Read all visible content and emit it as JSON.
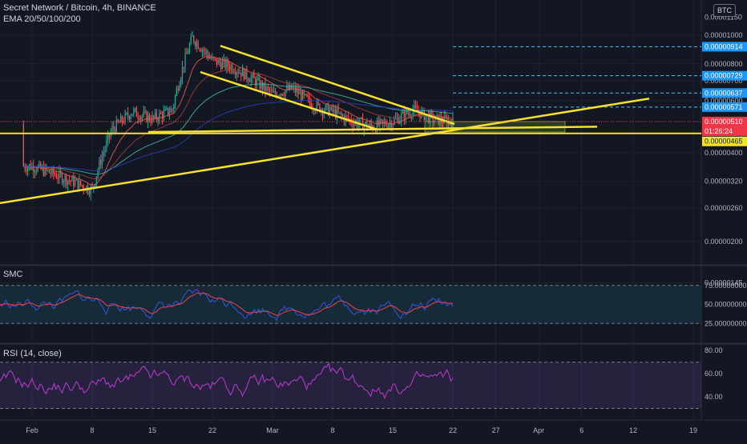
{
  "legend": {
    "symbol_line": "Secret Network / Bitcoin, 4h, BINANCE",
    "ema_line": "EMA 20/50/100/200"
  },
  "currency_badge": "BTC",
  "colors": {
    "background": "#131722",
    "grid": "#1e2230",
    "yellow": "#f5e12e",
    "blue_label": "#2196f3",
    "red_label": "#f23645",
    "yellow_label": "#f5e12e",
    "candle_up": "#26a69a",
    "candle_down": "#ef5350",
    "rsi_line": "#b039c8",
    "smc_fill": "#1a3a4a"
  },
  "chart_data": [
    {
      "type": "candlestick",
      "title": "Secret Network / Bitcoin, 4h, BINANCE",
      "indicators": [
        "EMA 20",
        "EMA 50",
        "EMA 100",
        "EMA 200"
      ],
      "y_scale": "log",
      "y_ticks": [
        "0.00001000",
        "0.00000800",
        "0.00000700",
        "0.00000600",
        "0.00000400",
        "0.00000320",
        "0.00000260",
        "0.00000200",
        "0.00000145"
      ],
      "y_top_label": "0.00001150",
      "x_ticks": [
        "Feb",
        "8",
        "15",
        "22",
        "Mar",
        "8",
        "15",
        "22",
        "27",
        "Apr",
        "6",
        "12",
        "19"
      ],
      "price_labels": [
        {
          "value": "0.00000914",
          "color": "blue"
        },
        {
          "value": "0.00000729",
          "color": "blue"
        },
        {
          "value": "0.00000637",
          "color": "blue"
        },
        {
          "value": "0.00000571",
          "color": "blue"
        },
        {
          "value": "0.00000510",
          "color": "red",
          "countdown": "01:26:24"
        },
        {
          "value": "0.00000465",
          "color": "yellow"
        }
      ],
      "dashed_levels": [
        "0.00000914",
        "0.00000729",
        "0.00000637",
        "0.00000571"
      ],
      "horizontal_support": "0.00000465",
      "price_path": [
        [
          "Feb",
          3.6e-06
        ],
        [
          "Feb 3",
          3.4e-06
        ],
        [
          "Feb 5",
          3.2e-06
        ],
        [
          "Feb 8",
          3e-06
        ],
        [
          "Feb 10",
          4.8e-06
        ],
        [
          "Feb 12",
          5.5e-06
        ],
        [
          "Feb 15",
          5.2e-06
        ],
        [
          "Feb 18",
          5.6e-06
        ],
        [
          "Feb 20",
          9.8e-06
        ],
        [
          "Feb 22",
          8.2e-06
        ],
        [
          "Feb 25",
          7.8e-06
        ],
        [
          "Feb 27",
          7.1e-06
        ],
        [
          "Mar",
          6.3e-06
        ],
        [
          "Mar 4",
          6.6e-06
        ],
        [
          "Mar 6",
          5.8e-06
        ],
        [
          "Mar 8",
          5.5e-06
        ],
        [
          "Mar 11",
          5.1e-06
        ],
        [
          "Mar 13",
          4.9e-06
        ],
        [
          "Mar 15",
          5.1e-06
        ],
        [
          "Mar 17",
          5.6e-06
        ],
        [
          "Mar 19",
          5.2e-06
        ],
        [
          "Mar 22",
          5.1e-06
        ]
      ]
    },
    {
      "type": "line",
      "title": "SMC",
      "y_ticks": [
        "75.00000000",
        "50.00000000",
        "25.00000000"
      ],
      "bands": [
        25,
        75
      ]
    },
    {
      "type": "line",
      "title": "RSI (14, close)",
      "y_ticks": [
        "80.00",
        "60.00",
        "40.00"
      ],
      "bands": [
        30,
        70
      ]
    }
  ]
}
